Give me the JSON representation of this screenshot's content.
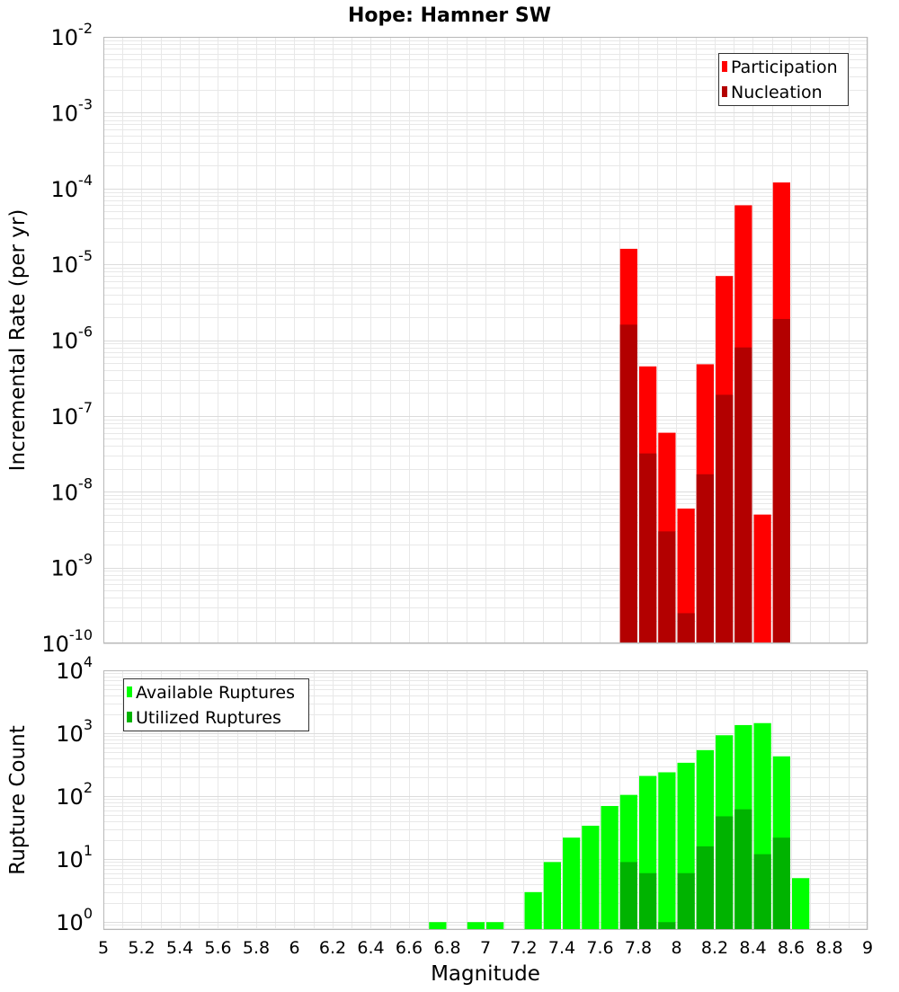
{
  "title": "Hope: Hamner SW",
  "colors": {
    "participation": "#ff0000",
    "nucleation": "#b30000",
    "available": "#00ff00",
    "utilized": "#00b300",
    "grid": "#e8e8e8",
    "frame": "#b8b8b8"
  },
  "chart_data": [
    {
      "type": "bar",
      "panel": "top",
      "ylabel": "Incremental Rate (per yr)",
      "yscale": "log",
      "ylim": [
        1e-10,
        0.01
      ],
      "xlim": [
        5,
        9
      ],
      "ytick_labels": [
        {
          "base": "10",
          "exp": "-10"
        },
        {
          "base": "10",
          "exp": "-9"
        },
        {
          "base": "10",
          "exp": "-8"
        },
        {
          "base": "10",
          "exp": "-7"
        },
        {
          "base": "10",
          "exp": "-6"
        },
        {
          "base": "10",
          "exp": "-5"
        },
        {
          "base": "10",
          "exp": "-4"
        },
        {
          "base": "10",
          "exp": "-3"
        },
        {
          "base": "10",
          "exp": "-2"
        }
      ],
      "legend": {
        "position": "top-right",
        "entries": [
          "Participation",
          "Nucleation"
        ]
      },
      "series": [
        {
          "name": "Participation",
          "x": [
            7.75,
            7.85,
            7.95,
            8.05,
            8.15,
            8.25,
            8.35,
            8.45,
            8.55
          ],
          "values": [
            1.6e-05,
            4.5e-07,
            6e-08,
            6e-09,
            4.8e-07,
            7e-06,
            6e-05,
            5e-09,
            0.00012
          ]
        },
        {
          "name": "Nucleation",
          "x": [
            7.75,
            7.85,
            7.95,
            8.05,
            8.15,
            8.25,
            8.35,
            8.45,
            8.55
          ],
          "values": [
            1.6e-06,
            3.2e-08,
            3e-09,
            2.5e-10,
            1.7e-08,
            1.9e-07,
            8e-07,
            null,
            1.9e-06
          ]
        }
      ]
    },
    {
      "type": "bar",
      "panel": "bottom",
      "ylabel": "Rupture Count",
      "xlabel": "Magnitude",
      "yscale": "log",
      "ylim": [
        0.75,
        10000
      ],
      "xlim": [
        5,
        9
      ],
      "xtick_labels": [
        "5",
        "5.2",
        "5.4",
        "5.6",
        "5.8",
        "6",
        "6.2",
        "6.4",
        "6.6",
        "6.8",
        "7",
        "7.2",
        "7.4",
        "7.6",
        "7.8",
        "8",
        "8.2",
        "8.4",
        "8.6",
        "8.8",
        "9"
      ],
      "ytick_labels": [
        {
          "base": "10",
          "exp": "0"
        },
        {
          "base": "10",
          "exp": "1"
        },
        {
          "base": "10",
          "exp": "2"
        },
        {
          "base": "10",
          "exp": "3"
        },
        {
          "base": "10",
          "exp": "4"
        }
      ],
      "legend": {
        "position": "top-left",
        "entries": [
          "Available Ruptures",
          "Utilized Ruptures"
        ]
      },
      "series": [
        {
          "name": "Available Ruptures",
          "x": [
            6.75,
            6.95,
            7.05,
            7.25,
            7.35,
            7.45,
            7.55,
            7.65,
            7.75,
            7.85,
            7.95,
            8.05,
            8.15,
            8.25,
            8.35,
            8.45,
            8.55,
            8.65
          ],
          "values": [
            1,
            1,
            1,
            3,
            9,
            22,
            34,
            70,
            105,
            210,
            240,
            340,
            540,
            930,
            1350,
            1450,
            430,
            5
          ]
        },
        {
          "name": "Utilized Ruptures",
          "x": [
            7.75,
            7.85,
            7.95,
            8.05,
            8.15,
            8.25,
            8.35,
            8.45,
            8.55
          ],
          "values": [
            9,
            6,
            1,
            6,
            16,
            48,
            62,
            12,
            22
          ]
        }
      ]
    }
  ]
}
